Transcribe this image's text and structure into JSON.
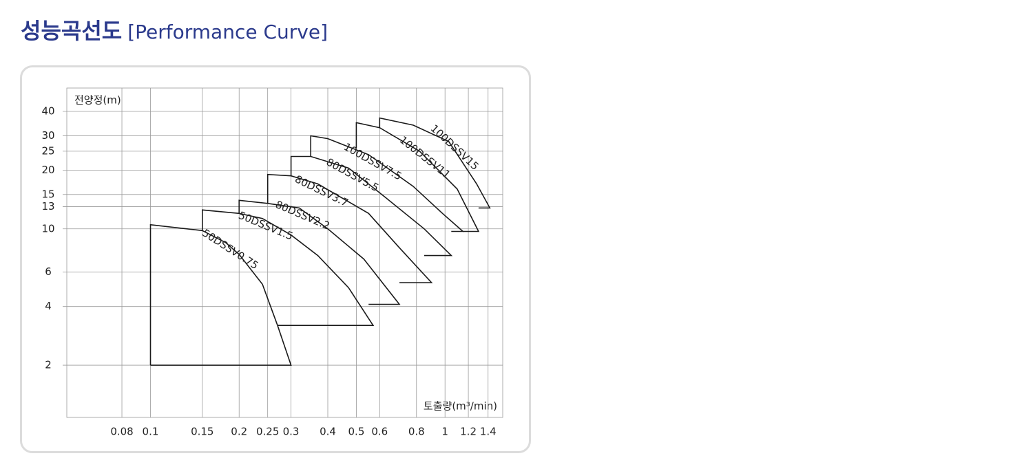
{
  "chart_data": {
    "type": "region",
    "title": "성능곡선도",
    "subtitle": "[Performance Curve]",
    "y_label": "전양정(m)",
    "x_label": "토출량(m³/min)",
    "log_x": true,
    "log_y": true,
    "grid": true,
    "color": "#1a1a1a",
    "xlim": [
      0.052,
      1.57
    ],
    "ylim": [
      1.08,
      52.7
    ],
    "xticks": [
      0.08,
      0.1,
      0.15,
      0.2,
      0.25,
      0.3,
      0.4,
      0.5,
      0.6,
      0.8,
      1,
      1.2,
      1.4
    ],
    "yticks": [
      2,
      4,
      6,
      10,
      13,
      15,
      20,
      25,
      30,
      40
    ],
    "series": [
      {
        "name": "50DSSV0.75",
        "x": [
          0.1,
          0.1,
          0.15,
          0.18,
          0.2,
          0.24,
          0.27,
          0.3,
          0.1
        ],
        "values": [
          2,
          10.5,
          9.8,
          8.5,
          7.4,
          5.2,
          3.2,
          2,
          2
        ]
      },
      {
        "name": "50DSSV1.5",
        "x": [
          0.15,
          0.15,
          0.2,
          0.24,
          0.3,
          0.37,
          0.47,
          0.57,
          0.27
        ],
        "values": [
          9.8,
          12.5,
          12,
          11.3,
          9.3,
          7.3,
          5,
          3.2,
          3.2
        ]
      },
      {
        "name": "80DSSV2.2",
        "x": [
          0.2,
          0.2,
          0.25,
          0.32,
          0.4,
          0.53,
          0.7,
          0.55
        ],
        "values": [
          12,
          14,
          13.5,
          12.8,
          10,
          7,
          4.1,
          4.1
        ]
      },
      {
        "name": "80DSSV3.7",
        "x": [
          0.25,
          0.25,
          0.3,
          0.37,
          0.55,
          0.7,
          0.9,
          0.7
        ],
        "values": [
          13.5,
          19,
          18.7,
          17,
          12,
          8,
          5.3,
          5.3
        ]
      },
      {
        "name": "80DSSV5.5",
        "x": [
          0.3,
          0.3,
          0.35,
          0.47,
          0.62,
          0.85,
          1.05,
          0.85
        ],
        "values": [
          18.7,
          23.5,
          23.5,
          20.5,
          14.7,
          10,
          7.3,
          7.3
        ]
      },
      {
        "name": "100DSSV7.5",
        "x": [
          0.35,
          0.35,
          0.4,
          0.55,
          0.78,
          0.98,
          1.15,
          1.05
        ],
        "values": [
          23.5,
          30,
          29,
          24,
          16.5,
          12,
          9.7,
          9.7
        ]
      },
      {
        "name": "100DSSV11",
        "x": [
          0.5,
          0.5,
          0.6,
          0.82,
          1.1,
          1.3,
          1.15
        ],
        "values": [
          26,
          35,
          33,
          25,
          16,
          9.7,
          9.7
        ]
      },
      {
        "name": "100DSSV15",
        "x": [
          0.6,
          0.6,
          0.78,
          1.03,
          1.28,
          1.42,
          1.3
        ],
        "values": [
          33,
          37,
          34,
          28,
          17,
          12.8,
          12.8
        ]
      }
    ]
  }
}
